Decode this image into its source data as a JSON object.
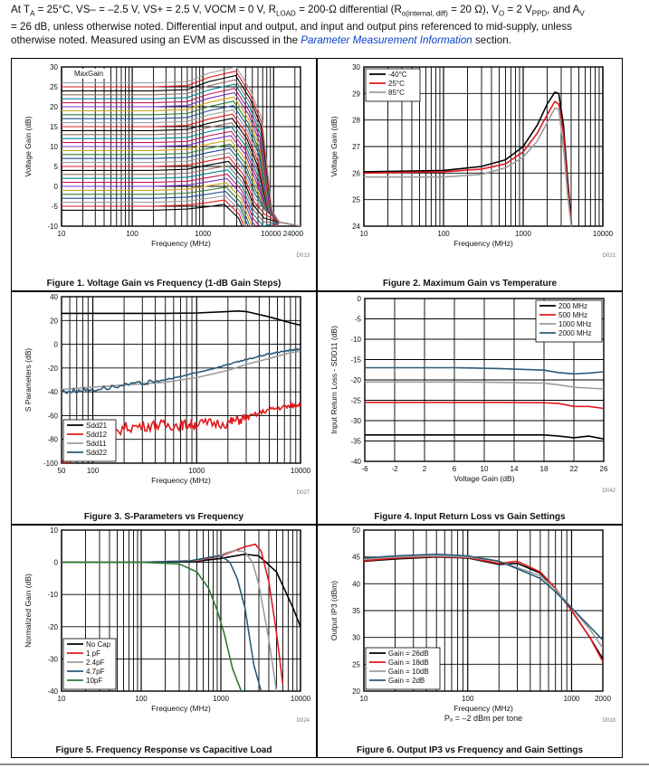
{
  "header": {
    "line1": "At Tₐ = 25°C, VS– = –2.5 V, VS+ = 2.5 V, VOCM = 0 V, R_LOAD = 200-Ω differential (R_o(internal, diff) = 20 Ω), V_O = 2 V_PPD, and A_V",
    "line2": "= 26 dB, unless otherwise noted. Differential input and output, and input and output pins referenced to mid-supply, unless",
    "line3_pre": "otherwise noted. Measured using an EVM as discussed in the ",
    "line3_link": "Parameter Measurement Information",
    "line3_post": " section."
  },
  "chart_data": [
    {
      "type": "line",
      "title": "Figure 1. Voltage Gain vs Frequency (1-dB Gain Steps)",
      "xlabel": "Frequency (MHz)",
      "ylabel": "Voltage Gain (dB)",
      "code": "D013",
      "xscale": "log",
      "xlim": [
        10,
        24000
      ],
      "ylim": [
        -10,
        30
      ],
      "xticks": [
        "10",
        "100",
        "1000",
        "10000 24000"
      ],
      "yticks": [
        "30",
        "25",
        "20",
        "15",
        "10",
        "5",
        "0",
        "-5",
        "-10"
      ],
      "annotation": "MaxGain",
      "gain_steps_db": {
        "from": -6,
        "to": 26,
        "step": 1
      },
      "colors": [
        "#000000",
        "#e0191c",
        "#9c9c9c",
        "#1f4e8c",
        "#2e7d32",
        "#d4a017",
        "#7b2fbe",
        "#c2185b",
        "#00838f",
        "#8d6e63"
      ]
    },
    {
      "type": "line",
      "title": "Figure 2. Maximum Gain vs Temperature",
      "xlabel": "Frequency (MHz)",
      "ylabel": "Voltage Gain (dB)",
      "code": "D021",
      "xscale": "log",
      "xlim": [
        10,
        10000
      ],
      "ylim": [
        24,
        30
      ],
      "xticks": [
        "10",
        "100",
        "1000",
        "10000"
      ],
      "yticks": [
        "30",
        "29",
        "28",
        "27",
        "26",
        "25",
        "24"
      ],
      "series": [
        {
          "name": "-40°C",
          "color": "#000000",
          "x": [
            10,
            100,
            300,
            600,
            1000,
            1500,
            2000,
            2500,
            2800,
            3200,
            3600,
            4200
          ],
          "y": [
            26.05,
            26.1,
            26.25,
            26.5,
            27.0,
            27.8,
            28.6,
            29.05,
            29.0,
            27.8,
            25.8,
            23.5
          ]
        },
        {
          "name": "25°C",
          "color": "#e0191c",
          "x": [
            10,
            100,
            300,
            600,
            1000,
            1500,
            2000,
            2500,
            2800,
            3200,
            3600,
            4200
          ],
          "y": [
            26.0,
            26.05,
            26.15,
            26.35,
            26.8,
            27.5,
            28.2,
            28.7,
            28.6,
            27.5,
            25.5,
            23.5
          ]
        },
        {
          "name": "85°C",
          "color": "#9c9c9c",
          "x": [
            10,
            100,
            300,
            600,
            1000,
            1500,
            2000,
            2500,
            2800,
            3200,
            3600,
            4200
          ],
          "y": [
            25.85,
            25.85,
            25.95,
            26.2,
            26.6,
            27.2,
            27.9,
            28.45,
            28.4,
            27.0,
            25.2,
            23.5
          ]
        }
      ]
    },
    {
      "type": "line",
      "title": "Figure 3. S-Parameters vs Frequency",
      "xlabel": "Frequency (MHz)",
      "ylabel": "S Parameters (dB)",
      "code": "D027",
      "xscale": "log",
      "xlim": [
        50,
        10000
      ],
      "ylim": [
        -100,
        40
      ],
      "xticks": [
        "50",
        "100",
        "1000",
        "10000"
      ],
      "yticks": [
        "40",
        "20",
        "0",
        "-20",
        "-40",
        "-60",
        "-80",
        "-100"
      ],
      "series": [
        {
          "name": "Sdd21",
          "color": "#000000",
          "x": [
            50,
            100,
            500,
            1000,
            2000,
            2500,
            3000,
            5000,
            8000,
            10000
          ],
          "y": [
            26,
            26,
            26,
            26.3,
            27.5,
            28,
            27.5,
            23,
            18,
            16
          ]
        },
        {
          "name": "Sdd12",
          "color": "#e0191c",
          "x": [
            50,
            100,
            200,
            400,
            700,
            1000,
            2000,
            3000,
            5000,
            8000,
            10000
          ],
          "y": [
            -100,
            -85,
            -70,
            -68,
            -68,
            -67,
            -66,
            -62,
            -55,
            -52,
            -50
          ]
        },
        {
          "name": "Sdd11",
          "color": "#9c9c9c",
          "x": [
            50,
            100,
            500,
            1000,
            2000,
            3000,
            5000,
            8000,
            10000
          ],
          "y": [
            -38,
            -36,
            -32,
            -28,
            -22,
            -17,
            -12,
            -7,
            -6
          ]
        },
        {
          "name": "Sdd22",
          "color": "#2b5a78",
          "x": [
            50,
            100,
            300,
            500,
            1000,
            2000,
            3000,
            5000,
            8000,
            10000
          ],
          "y": [
            -40,
            -38,
            -33,
            -30,
            -24,
            -17,
            -13,
            -8,
            -5,
            -4
          ]
        }
      ]
    },
    {
      "type": "line",
      "title": "Figure 4. Input Return Loss vs Gain Settings",
      "xlabel": "Voltage Gain (dB)",
      "ylabel": "Input Return Loss - SDD11 (dB)",
      "code": "D042",
      "xscale": "linear",
      "xlim": [
        -6,
        26
      ],
      "ylim": [
        -40,
        0
      ],
      "xticks": [
        "-6",
        "-2",
        "2",
        "6",
        "10",
        "14",
        "18",
        "22",
        "26"
      ],
      "yticks": [
        "0",
        "-5",
        "-10",
        "-15",
        "-20",
        "-25",
        "-30",
        "-35",
        "-40"
      ],
      "series": [
        {
          "name": "200 MHz",
          "color": "#000000",
          "x": [
            -6,
            0,
            6,
            12,
            18,
            20,
            22,
            24,
            26
          ],
          "y": [
            -33.5,
            -33.5,
            -33.5,
            -33.5,
            -33.5,
            -33.8,
            -34.2,
            -33.8,
            -34.5
          ]
        },
        {
          "name": "500 MHz",
          "color": "#e0191c",
          "x": [
            -6,
            0,
            6,
            12,
            18,
            20,
            22,
            24,
            26
          ],
          "y": [
            -25.5,
            -25.5,
            -25.5,
            -25.5,
            -25.6,
            -25.8,
            -26.5,
            -26.5,
            -27
          ]
        },
        {
          "name": "1000 MHz",
          "color": "#9c9c9c",
          "x": [
            -6,
            0,
            6,
            12,
            18,
            20,
            22,
            24,
            26
          ],
          "y": [
            -20.5,
            -20.5,
            -20.5,
            -20.6,
            -20.8,
            -21.2,
            -21.8,
            -22,
            -22.2
          ]
        },
        {
          "name": "2000 MHz",
          "color": "#2b5a78",
          "x": [
            -6,
            0,
            6,
            12,
            18,
            20,
            22,
            24,
            26
          ],
          "y": [
            -17,
            -17,
            -17,
            -17.2,
            -17.6,
            -18.2,
            -18.5,
            -18.3,
            -18
          ]
        }
      ]
    },
    {
      "type": "line",
      "title": "Figure 5. Frequency Response vs Capacitive Load",
      "xlabel": "Frequency (MHz)",
      "ylabel": "Normalized Gain (dB)",
      "code": "D024",
      "xscale": "log",
      "xlim": [
        10,
        10000
      ],
      "ylim": [
        -40,
        10
      ],
      "xticks": [
        "10",
        "100",
        "1000",
        "10000"
      ],
      "yticks": [
        "10",
        "0",
        "-10",
        "-20",
        "-30",
        "-40"
      ],
      "series": [
        {
          "name": "No Cap",
          "color": "#000000",
          "x": [
            10,
            100,
            500,
            1000,
            2000,
            3000,
            5000,
            8000,
            10000
          ],
          "y": [
            0,
            0,
            0.3,
            1.2,
            2.5,
            2,
            -3,
            -14,
            -20
          ]
        },
        {
          "name": "1 pF",
          "color": "#e0191c",
          "x": [
            10,
            100,
            500,
            1000,
            2000,
            2700,
            3200,
            4000,
            5000,
            6000
          ],
          "y": [
            0,
            0,
            0.5,
            2,
            4.8,
            5.6,
            3.5,
            -6,
            -22,
            -38
          ]
        },
        {
          "name": "2.4pF",
          "color": "#9c9c9c",
          "x": [
            10,
            100,
            500,
            1000,
            1500,
            2000,
            2500,
            3000,
            4000,
            5000
          ],
          "y": [
            0,
            0,
            0.6,
            2.4,
            3.7,
            3.3,
            0,
            -7,
            -24,
            -40
          ]
        },
        {
          "name": "4.7pF",
          "color": "#2b5a78",
          "x": [
            10,
            100,
            400,
            700,
            1000,
            1300,
            1600,
            2000,
            2600,
            3200
          ],
          "y": [
            0,
            0,
            0.4,
            1.5,
            2,
            0,
            -5,
            -14,
            -32,
            -40
          ]
        },
        {
          "name": "10pF",
          "color": "#2e7d32",
          "x": [
            10,
            100,
            300,
            500,
            700,
            900,
            1100,
            1400,
            1800
          ],
          "y": [
            0,
            0,
            -0.5,
            -3,
            -8,
            -15,
            -22,
            -33,
            -40
          ]
        }
      ]
    },
    {
      "type": "line",
      "title": "Figure 6. Output IP3 vs Frequency and Gain Settings",
      "xlabel": "Frequency (MHz)",
      "ylabel": "Output IP3 (dBm)",
      "code": "D018",
      "subcaption": "P_O = –2 dBm per tone",
      "xscale": "log",
      "xlim": [
        10,
        2000
      ],
      "ylim": [
        20,
        50
      ],
      "xticks": [
        "10",
        "100",
        "1000",
        "2000"
      ],
      "yticks": [
        "50",
        "45",
        "40",
        "35",
        "30",
        "25",
        "20"
      ],
      "series": [
        {
          "name": "Gain = 26dB",
          "color": "#000000",
          "x": [
            10,
            20,
            50,
            100,
            200,
            300,
            500,
            700,
            1000,
            1500,
            2000
          ],
          "y": [
            44.2,
            44.6,
            45,
            44.8,
            43.6,
            43.8,
            42,
            39,
            35,
            30,
            26
          ]
        },
        {
          "name": "Gain = 18dB",
          "color": "#e0191c",
          "x": [
            10,
            20,
            50,
            100,
            200,
            300,
            500,
            700,
            1000,
            1500,
            2000
          ],
          "y": [
            44.3,
            44.8,
            45.1,
            44.9,
            43.8,
            44.2,
            42.2,
            39.2,
            35,
            30,
            25.5
          ]
        },
        {
          "name": "Gain = 10dB",
          "color": "#9c9c9c",
          "x": [
            10,
            20,
            50,
            100,
            200,
            300,
            500,
            700,
            1000,
            1500,
            2000
          ],
          "y": [
            44.6,
            45,
            45.2,
            45,
            44.2,
            43,
            41.5,
            39,
            35.5,
            31.5,
            28
          ]
        },
        {
          "name": "Gain = 2dB",
          "color": "#2b5a78",
          "x": [
            10,
            20,
            50,
            100,
            200,
            300,
            500,
            700,
            1000,
            1500,
            2000
          ],
          "y": [
            44.8,
            45.2,
            45.5,
            45.2,
            44.2,
            42.8,
            41,
            38.5,
            35.5,
            32,
            29.5
          ]
        }
      ]
    }
  ]
}
